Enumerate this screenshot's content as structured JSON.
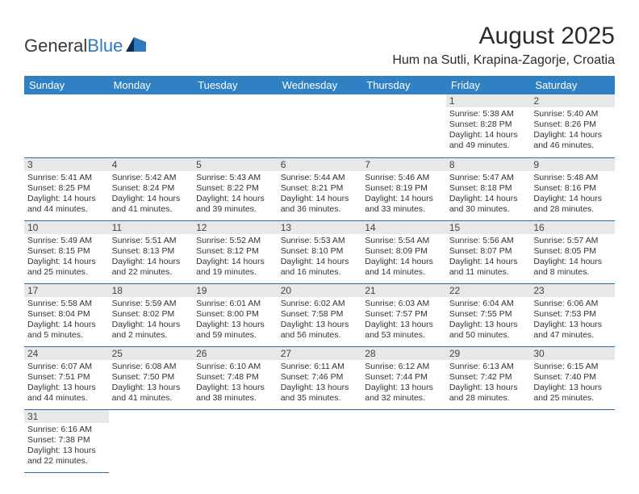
{
  "brand": {
    "part1": "General",
    "part2": "Blue"
  },
  "title": "August 2025",
  "location": "Hum na Sutli, Krapina-Zagorje, Croatia",
  "colors": {
    "header_bg": "#3080c4",
    "header_text": "#ffffff",
    "row_divider": "#2a6fa8",
    "daynum_bg": "#e8e8e8",
    "body_text": "#333333",
    "page_bg": "#ffffff"
  },
  "weekdays": [
    "Sunday",
    "Monday",
    "Tuesday",
    "Wednesday",
    "Thursday",
    "Friday",
    "Saturday"
  ],
  "first_weekday_index": 5,
  "days": [
    {
      "n": "1",
      "sr": "5:38 AM",
      "ss": "8:28 PM",
      "dl": "14 hours and 49 minutes."
    },
    {
      "n": "2",
      "sr": "5:40 AM",
      "ss": "8:26 PM",
      "dl": "14 hours and 46 minutes."
    },
    {
      "n": "3",
      "sr": "5:41 AM",
      "ss": "8:25 PM",
      "dl": "14 hours and 44 minutes."
    },
    {
      "n": "4",
      "sr": "5:42 AM",
      "ss": "8:24 PM",
      "dl": "14 hours and 41 minutes."
    },
    {
      "n": "5",
      "sr": "5:43 AM",
      "ss": "8:22 PM",
      "dl": "14 hours and 39 minutes."
    },
    {
      "n": "6",
      "sr": "5:44 AM",
      "ss": "8:21 PM",
      "dl": "14 hours and 36 minutes."
    },
    {
      "n": "7",
      "sr": "5:46 AM",
      "ss": "8:19 PM",
      "dl": "14 hours and 33 minutes."
    },
    {
      "n": "8",
      "sr": "5:47 AM",
      "ss": "8:18 PM",
      "dl": "14 hours and 30 minutes."
    },
    {
      "n": "9",
      "sr": "5:48 AM",
      "ss": "8:16 PM",
      "dl": "14 hours and 28 minutes."
    },
    {
      "n": "10",
      "sr": "5:49 AM",
      "ss": "8:15 PM",
      "dl": "14 hours and 25 minutes."
    },
    {
      "n": "11",
      "sr": "5:51 AM",
      "ss": "8:13 PM",
      "dl": "14 hours and 22 minutes."
    },
    {
      "n": "12",
      "sr": "5:52 AM",
      "ss": "8:12 PM",
      "dl": "14 hours and 19 minutes."
    },
    {
      "n": "13",
      "sr": "5:53 AM",
      "ss": "8:10 PM",
      "dl": "14 hours and 16 minutes."
    },
    {
      "n": "14",
      "sr": "5:54 AM",
      "ss": "8:09 PM",
      "dl": "14 hours and 14 minutes."
    },
    {
      "n": "15",
      "sr": "5:56 AM",
      "ss": "8:07 PM",
      "dl": "14 hours and 11 minutes."
    },
    {
      "n": "16",
      "sr": "5:57 AM",
      "ss": "8:05 PM",
      "dl": "14 hours and 8 minutes."
    },
    {
      "n": "17",
      "sr": "5:58 AM",
      "ss": "8:04 PM",
      "dl": "14 hours and 5 minutes."
    },
    {
      "n": "18",
      "sr": "5:59 AM",
      "ss": "8:02 PM",
      "dl": "14 hours and 2 minutes."
    },
    {
      "n": "19",
      "sr": "6:01 AM",
      "ss": "8:00 PM",
      "dl": "13 hours and 59 minutes."
    },
    {
      "n": "20",
      "sr": "6:02 AM",
      "ss": "7:58 PM",
      "dl": "13 hours and 56 minutes."
    },
    {
      "n": "21",
      "sr": "6:03 AM",
      "ss": "7:57 PM",
      "dl": "13 hours and 53 minutes."
    },
    {
      "n": "22",
      "sr": "6:04 AM",
      "ss": "7:55 PM",
      "dl": "13 hours and 50 minutes."
    },
    {
      "n": "23",
      "sr": "6:06 AM",
      "ss": "7:53 PM",
      "dl": "13 hours and 47 minutes."
    },
    {
      "n": "24",
      "sr": "6:07 AM",
      "ss": "7:51 PM",
      "dl": "13 hours and 44 minutes."
    },
    {
      "n": "25",
      "sr": "6:08 AM",
      "ss": "7:50 PM",
      "dl": "13 hours and 41 minutes."
    },
    {
      "n": "26",
      "sr": "6:10 AM",
      "ss": "7:48 PM",
      "dl": "13 hours and 38 minutes."
    },
    {
      "n": "27",
      "sr": "6:11 AM",
      "ss": "7:46 PM",
      "dl": "13 hours and 35 minutes."
    },
    {
      "n": "28",
      "sr": "6:12 AM",
      "ss": "7:44 PM",
      "dl": "13 hours and 32 minutes."
    },
    {
      "n": "29",
      "sr": "6:13 AM",
      "ss": "7:42 PM",
      "dl": "13 hours and 28 minutes."
    },
    {
      "n": "30",
      "sr": "6:15 AM",
      "ss": "7:40 PM",
      "dl": "13 hours and 25 minutes."
    },
    {
      "n": "31",
      "sr": "6:16 AM",
      "ss": "7:38 PM",
      "dl": "13 hours and 22 minutes."
    }
  ],
  "labels": {
    "sunrise": "Sunrise:",
    "sunset": "Sunset:",
    "daylight": "Daylight:"
  }
}
